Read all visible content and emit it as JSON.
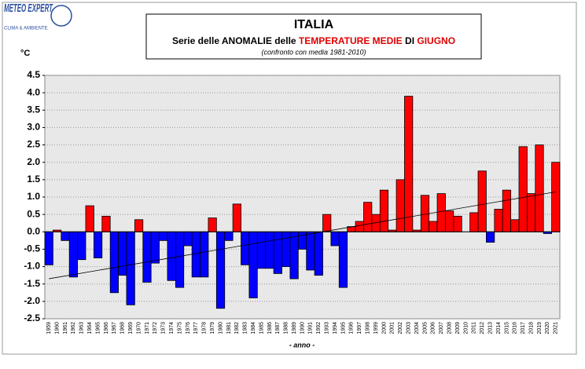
{
  "logo": {
    "name": "METEO EXPERT",
    "tagline": "CLIMA & AMBIENTE"
  },
  "chart_data": {
    "type": "bar",
    "title": "ITALIA",
    "subtitle_parts": [
      {
        "text": "Serie delle ",
        "color": "#000000"
      },
      {
        "text": "ANOMALIE",
        "color": "#000000"
      },
      {
        "text": " delle ",
        "color": "#000000"
      },
      {
        "text": "TEMPERATURE MEDIE",
        "color": "#e00000"
      },
      {
        "text": " DI ",
        "color": "#000000"
      },
      {
        "text": "GIUGNO",
        "color": "#e00000"
      }
    ],
    "note": "(confronto con media 1981-2010)",
    "y_unit": "°C",
    "x_label": "- anno -",
    "categories": [
      "1959",
      "1960",
      "1961",
      "1962",
      "1963",
      "1964",
      "1965",
      "1966",
      "1967",
      "1968",
      "1969",
      "1970",
      "1971",
      "1972",
      "1973",
      "1974",
      "1975",
      "1976",
      "1977",
      "1978",
      "1979",
      "1980",
      "1981",
      "1982",
      "1983",
      "1984",
      "1985",
      "1986",
      "1987",
      "1988",
      "1989",
      "1990",
      "1991",
      "1992",
      "1993",
      "1994",
      "1995",
      "1996",
      "1997",
      "1998",
      "1999",
      "2000",
      "2001",
      "2002",
      "2003",
      "2004",
      "2005",
      "2006",
      "2007",
      "2008",
      "2009",
      "2010",
      "2011",
      "2012",
      "2013",
      "2014",
      "2015",
      "2016",
      "2017",
      "2018",
      "2019",
      "2020",
      "2021"
    ],
    "values": [
      -0.95,
      0.05,
      -0.25,
      -1.3,
      -0.8,
      0.75,
      -0.75,
      0.45,
      -1.75,
      -1.25,
      -2.1,
      0.35,
      -1.45,
      -0.9,
      -0.25,
      -1.4,
      -1.6,
      -0.4,
      -1.3,
      -1.3,
      0.4,
      -2.2,
      -0.25,
      0.8,
      -0.95,
      -1.9,
      -1.05,
      -1.05,
      -1.2,
      -1.0,
      -1.35,
      -0.5,
      -1.1,
      -1.25,
      0.5,
      -0.4,
      -1.6,
      0.15,
      0.3,
      0.85,
      0.5,
      1.2,
      0.05,
      1.5,
      3.9,
      0.05,
      1.05,
      0.3,
      1.1,
      0.6,
      0.45,
      0,
      0.55,
      1.75,
      -0.3,
      0.65,
      1.2,
      0.35,
      2.45,
      1.1,
      2.5,
      -0.05,
      2.0
    ],
    "positive_color": "#ff0000",
    "negative_color": "#0000ff",
    "trend": [
      -1.35,
      1.15
    ],
    "ylim": [
      -2.5,
      4.5
    ],
    "yticks": [
      4.5,
      {
        "value": 4,
        "label": "4.0"
      },
      3.5,
      {
        "value": 3,
        "label": "3.0"
      },
      2.5,
      {
        "value": 2,
        "label": "2.0"
      },
      1.5,
      {
        "value": 1,
        "label": "1.0"
      },
      0.5,
      {
        "value": 0,
        "label": "0.0"
      },
      -0.5,
      {
        "value": -1,
        "label": "-1.0"
      },
      -1.5,
      {
        "value": -2,
        "label": "-2.0"
      },
      -2.5
    ],
    "grid": true
  }
}
